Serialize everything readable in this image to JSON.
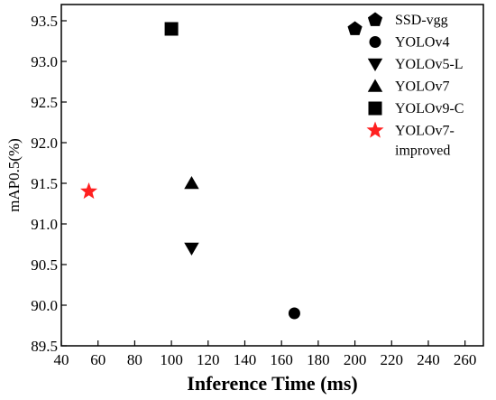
{
  "chart_data": {
    "type": "scatter",
    "title": "",
    "xlabel": "Inference Time (ms)",
    "ylabel": "mAP0.5(%)",
    "xlim": [
      40,
      270
    ],
    "ylim": [
      89.5,
      93.7
    ],
    "x_ticks": [
      40,
      60,
      80,
      100,
      120,
      140,
      160,
      180,
      200,
      220,
      240,
      260
    ],
    "y_ticks": [
      "89.5",
      "90.0",
      "90.5",
      "91.0",
      "91.5",
      "92.0",
      "92.5",
      "93.0",
      "93.5"
    ],
    "grid": false,
    "legend_position": "top-right",
    "series": [
      {
        "name": "SSD-vgg",
        "marker": "pentagon",
        "color": "#000000",
        "points": [
          {
            "x": 200,
            "y": 93.4
          }
        ]
      },
      {
        "name": "YOLOv4",
        "marker": "circle",
        "color": "#000000",
        "points": [
          {
            "x": 167,
            "y": 89.9
          }
        ]
      },
      {
        "name": "YOLOv5-L",
        "marker": "triangle-down",
        "color": "#000000",
        "points": [
          {
            "x": 111,
            "y": 90.7
          }
        ]
      },
      {
        "name": "YOLOv7",
        "marker": "triangle-up",
        "color": "#000000",
        "points": [
          {
            "x": 111,
            "y": 91.5
          }
        ]
      },
      {
        "name": "YOLOv9-C",
        "marker": "square",
        "color": "#000000",
        "points": [
          {
            "x": 100,
            "y": 93.4
          }
        ]
      },
      {
        "name": "YOLOv7-improved",
        "name_lines": [
          "YOLOv7-",
          "improved"
        ],
        "marker": "star",
        "color": "#ff2020",
        "points": [
          {
            "x": 55,
            "y": 91.4
          }
        ]
      }
    ]
  }
}
